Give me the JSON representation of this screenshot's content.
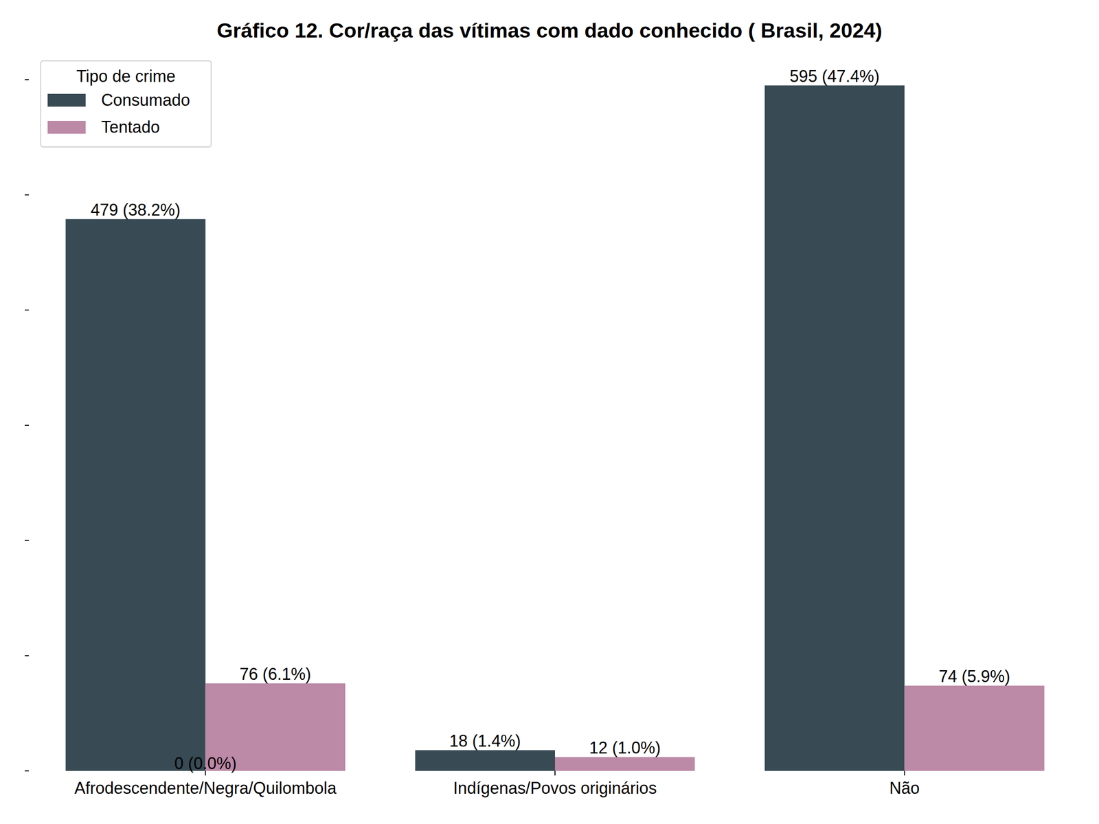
{
  "chart_data": {
    "type": "bar",
    "title": "Gráfico 12. Cor/raça das vítimas com dado conhecido ( Brasil, 2024)",
    "categories": [
      "Afrodescendente/Negra/Quilombola",
      "Indígenas/Povos originários",
      "Não"
    ],
    "series": [
      {
        "name": "Consumado",
        "color": "#384a54",
        "values": [
          479,
          18,
          595
        ],
        "value_labels": [
          "479 (38.2%)",
          "18 (1.4%)",
          "595 (47.4%)"
        ]
      },
      {
        "name": "Tentado",
        "color": "#bc89a6",
        "values": [
          76,
          12,
          74
        ],
        "value_labels": [
          "76 (6.1%)",
          "12 (1.0%)",
          "74 (5.9%)"
        ]
      }
    ],
    "legend_title": "Tipo de crime",
    "legend": "upper left",
    "ylim": [
      0,
      600
    ],
    "yticks": [
      0,
      100,
      200,
      300,
      400,
      500,
      600
    ],
    "grid": false,
    "data_labels": true,
    "tick_labels": "x",
    "annotations": [
      {
        "text": "0 (0.0%)",
        "category_index": 0,
        "value": 0
      }
    ]
  }
}
